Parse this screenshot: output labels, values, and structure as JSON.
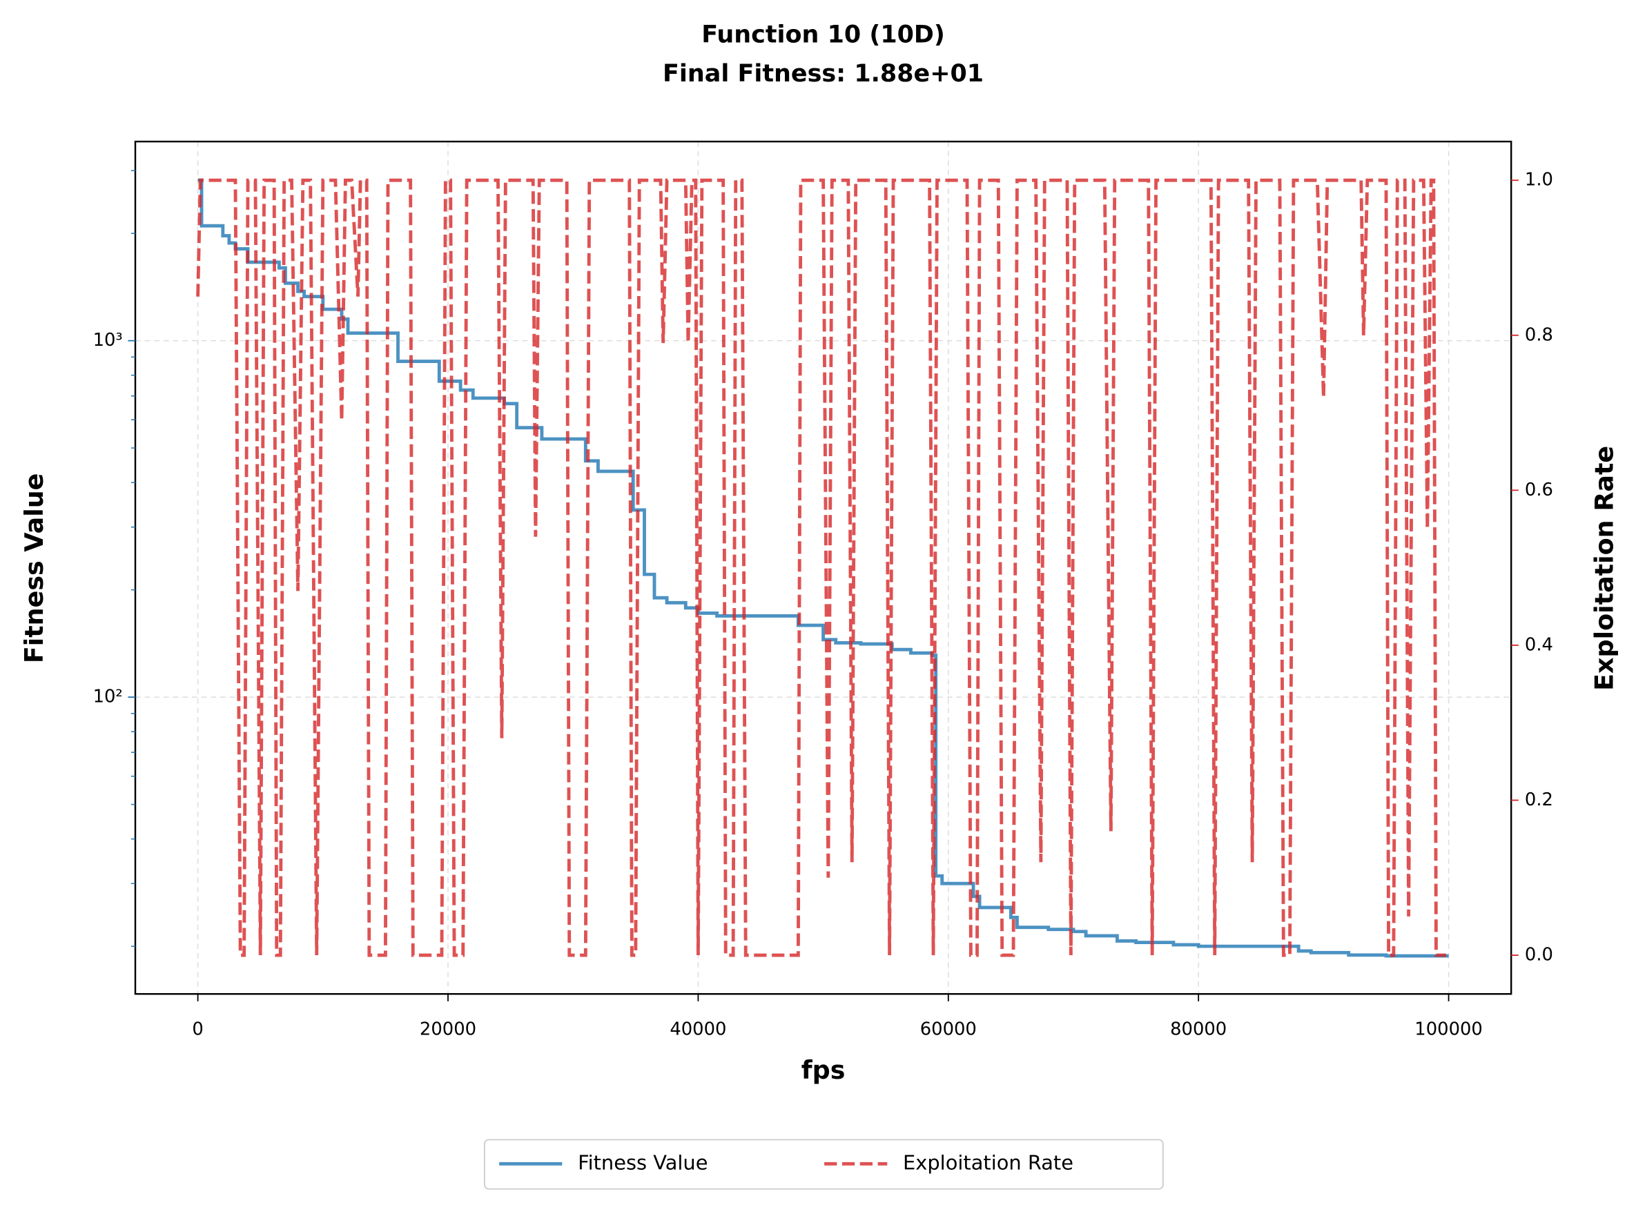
{
  "chart_data": {
    "type": "line",
    "title": "Function 10 (10D)",
    "subtitle": "Final Fitness: 1.88e+01",
    "xlabel": "fps",
    "ylabel": "Fitness Value",
    "y2label": "Exploitation Rate",
    "xlim": [
      -5000,
      105000
    ],
    "xticks": [
      0,
      20000,
      40000,
      60000,
      80000,
      100000
    ],
    "ylim": [
      14.7,
      3620
    ],
    "yscale": "log",
    "yticks": [
      {
        "value": 100,
        "label": "10²"
      },
      {
        "value": 1000,
        "label": "10³"
      }
    ],
    "yminorticks": [
      20,
      30,
      40,
      50,
      60,
      70,
      80,
      90,
      200,
      300,
      400,
      500,
      600,
      700,
      800,
      900,
      2000,
      3000
    ],
    "y2lim": [
      -0.05,
      1.05
    ],
    "y2ticks": [
      {
        "value": 0,
        "label": "0.0"
      },
      0.2,
      0.4,
      0.6,
      0.8,
      {
        "value": 1,
        "label": "1.0"
      }
    ],
    "grid": true,
    "legend": "lower center",
    "series": [
      {
        "name": "Fitness Value",
        "color": "#1f77b4",
        "style": "solid",
        "x": [
          0,
          300,
          300,
          2000,
          2000,
          2500,
          2500,
          3000,
          3000,
          4000,
          4000,
          6500,
          6500,
          7000,
          7000,
          8000,
          8000,
          8500,
          8500,
          10000,
          10000,
          11500,
          11500,
          12000,
          12000,
          16000,
          16000,
          19300,
          19300,
          21000,
          21000,
          22000,
          22000,
          24500,
          24500,
          25500,
          25500,
          27500,
          27500,
          31000,
          31000,
          32000,
          32000,
          34800,
          34800,
          35700,
          35700,
          36500,
          36500,
          37500,
          37500,
          39000,
          39000,
          40000,
          40000,
          41500,
          41500,
          48000,
          48000,
          50000,
          50000,
          51000,
          51000,
          53000,
          53000,
          55500,
          55500,
          57000,
          57000,
          58700,
          58700,
          59000,
          59000,
          59500,
          59500,
          62000,
          62000,
          62500,
          62500,
          65000,
          65000,
          65500,
          65500,
          68000,
          68000,
          70000,
          70000,
          71000,
          71000,
          73500,
          73500,
          75000,
          75000,
          78000,
          78000,
          80000,
          80000,
          88000,
          88000,
          89000,
          89000,
          92000,
          92000,
          95000,
          95000,
          100000
        ],
        "values": [
          2820,
          2820,
          2100,
          2100,
          1970,
          1970,
          1880,
          1880,
          1810,
          1810,
          1660,
          1660,
          1600,
          1600,
          1450,
          1450,
          1375,
          1375,
          1330,
          1330,
          1225,
          1225,
          1150,
          1150,
          1050,
          1050,
          875,
          875,
          770,
          770,
          727,
          727,
          690,
          690,
          666,
          666,
          570,
          570,
          530,
          530,
          460,
          460,
          430,
          430,
          335,
          335,
          221,
          221,
          190,
          190,
          184,
          184,
          178,
          178,
          172,
          172,
          169,
          169,
          159,
          159,
          145,
          145,
          142,
          142,
          141,
          141,
          136,
          136,
          133,
          133,
          131,
          131,
          31.5,
          31.5,
          30,
          30,
          27.6,
          27.6,
          25.7,
          25.7,
          24.1,
          24.1,
          22.6,
          22.6,
          22.3,
          22.3,
          22,
          22,
          21.4,
          21.4,
          20.7,
          20.7,
          20.5,
          20.5,
          20.2,
          20.2,
          20,
          20,
          19.4,
          19.4,
          19.2,
          19.2,
          18.9,
          18.9,
          18.8,
          18.8
        ]
      },
      {
        "name": "Exploitation Rate",
        "color": "#d62728",
        "style": "dashed",
        "axis": "y2",
        "x": [
          0,
          200,
          3000,
          3400,
          3700,
          4000,
          4600,
          5000,
          5300,
          6100,
          6300,
          6600,
          6900,
          7500,
          8000,
          8400,
          9000,
          9500,
          10000,
          11000,
          11500,
          11800,
          12300,
          12800,
          13000,
          13500,
          13700,
          15000,
          15200,
          17000,
          17200,
          19500,
          19800,
          20200,
          20500,
          21200,
          21500,
          24000,
          24300,
          24600,
          26800,
          27000,
          27300,
          29500,
          29700,
          31000,
          31300,
          34500,
          34700,
          35000,
          35300,
          37000,
          37200,
          37500,
          39000,
          39200,
          39500,
          39800,
          40000,
          40300,
          42000,
          42200,
          42800,
          43000,
          43500,
          43800,
          48000,
          48200,
          50000,
          50400,
          50700,
          52000,
          52300,
          52600,
          55000,
          55300,
          55600,
          58500,
          58800,
          59100,
          61500,
          61800,
          62300,
          62500,
          64000,
          64300,
          65200,
          65500,
          67000,
          67400,
          67700,
          69500,
          69800,
          70100,
          72500,
          73000,
          73300,
          76000,
          76300,
          76600,
          81000,
          81300,
          81600,
          84000,
          84300,
          84600,
          86500,
          86800,
          87300,
          87600,
          89500,
          90000,
          90300,
          93000,
          93200,
          93500,
          95000,
          95200,
          95600,
          95900,
          96500,
          96800,
          97200,
          98000,
          98300,
          98600,
          98800,
          99000,
          99800
        ],
        "values": [
          0.85,
          1,
          1,
          0,
          0,
          1,
          1,
          0,
          1,
          1,
          0,
          0,
          1,
          1,
          0.47,
          1,
          1,
          0,
          1,
          1,
          0.69,
          1,
          1,
          0.85,
          1,
          1,
          0,
          0,
          1,
          1,
          0,
          0,
          1,
          1,
          0,
          0,
          1,
          1,
          0.28,
          1,
          1,
          0.54,
          1,
          1,
          0,
          0,
          1,
          1,
          0,
          0,
          1,
          1,
          0.79,
          1,
          1,
          0.79,
          1,
          1,
          0,
          1,
          1,
          0,
          0,
          1,
          1,
          0,
          0,
          1,
          1,
          0.1,
          1,
          1,
          0.12,
          1,
          1,
          0,
          1,
          1,
          0,
          1,
          1,
          0,
          0,
          1,
          1,
          0,
          0,
          1,
          1,
          0.12,
          1,
          1,
          0,
          1,
          1,
          0.16,
          1,
          1,
          0,
          1,
          1,
          0,
          1,
          1,
          0.12,
          1,
          1,
          0,
          0,
          1,
          1,
          0.72,
          1,
          1,
          0.8,
          1,
          1,
          0,
          0,
          1,
          1,
          0.05,
          1,
          1,
          0.55,
          1,
          1,
          0,
          0
        ]
      }
    ]
  }
}
